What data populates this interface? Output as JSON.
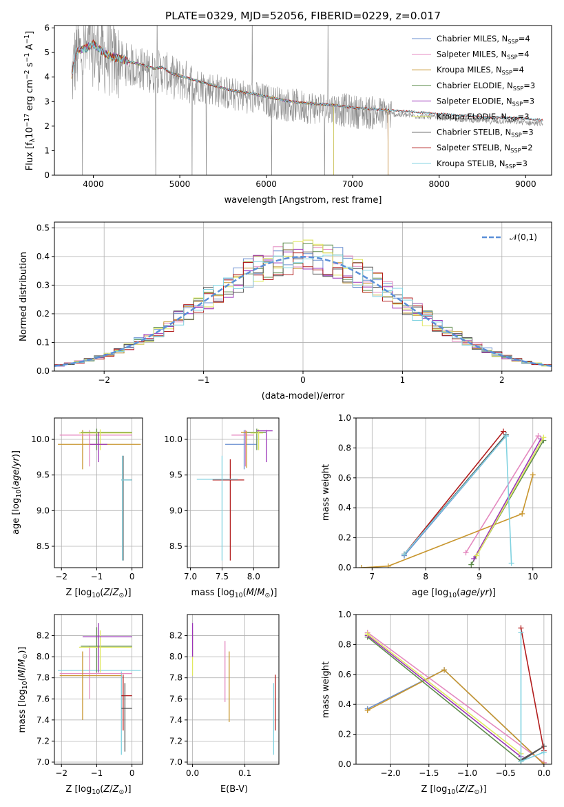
{
  "figure": {
    "title": "PLATE=0329, MJD=52056, FIBERID=0229, z=0.017"
  },
  "colors": {
    "Chabrier MILES": "#6a8fd0",
    "Salpeter MILES": "#e48ac0",
    "Kroupa MILES": "#c8962e",
    "Chabrier ELODIE": "#5e8c4c",
    "Salpeter ELODIE": "#9a34b8",
    "Kroupa ELODIE": "#e0e860",
    "Chabrier STELIB": "#555555",
    "Salpeter STELIB": "#b21e1e",
    "Kroupa STELIB": "#80d2e0",
    "data": "#8a8a8a",
    "gaussian": "#5a8fd8"
  },
  "chart_data": [
    {
      "id": "spectrum",
      "type": "line",
      "xlabel": "wavelength [Angstrom, rest frame]",
      "ylabel": "Flux [f",
      "ylabel_sub": "λ",
      "ylabel_rest": "10",
      "ylabel_sup1": "−17",
      "ylabel_tail": " erg cm",
      "ylabel_sup2": "−2",
      "ylabel_tail2": " s",
      "ylabel_sup3": "−1",
      "ylabel_tail3": " A",
      "ylabel_sup4": "−1",
      "ylabel_end": "]",
      "xlim": [
        3550,
        9300
      ],
      "ylim": [
        0,
        6.1
      ],
      "xticks": [
        4000,
        5000,
        6000,
        7000,
        8000,
        9000
      ],
      "yticks": [
        0,
        1,
        2,
        3,
        4,
        5,
        6
      ],
      "continuum": {
        "x": [
          3750,
          3800,
          3900,
          4000,
          4100,
          4200,
          4300,
          4400,
          4500,
          4600,
          4700,
          4800,
          4900,
          5000,
          5200,
          5400,
          5600,
          5800,
          6000,
          6200,
          6400,
          6600,
          6800,
          7000,
          7200,
          7400,
          7600,
          7800,
          8000,
          8200,
          8400,
          8600,
          8800,
          9000,
          9200
        ],
        "y": [
          3.9,
          4.9,
          5.0,
          5.2,
          4.9,
          4.7,
          4.6,
          4.5,
          4.4,
          4.3,
          4.2,
          4.25,
          4.0,
          3.9,
          3.7,
          3.5,
          3.3,
          3.2,
          3.05,
          2.9,
          2.8,
          2.75,
          2.7,
          2.6,
          2.55,
          2.5,
          2.45,
          2.4,
          2.35,
          2.3,
          2.25,
          2.2,
          2.2,
          2.15,
          2.1
        ]
      },
      "data_range": [
        3750,
        9200
      ],
      "model_ranges": {
        "Chabrier MILES": [
          3750,
          7410
        ],
        "Salpeter MILES": [
          3750,
          7410
        ],
        "Kroupa MILES": [
          3750,
          7410
        ],
        "Chabrier ELODIE": [
          3850,
          6780
        ],
        "Salpeter ELODIE": [
          3850,
          6780
        ],
        "Kroupa ELODIE": [
          3850,
          6780
        ],
        "Chabrier STELIB": [
          3750,
          9200
        ],
        "Salpeter STELIB": [
          3750,
          9200
        ],
        "Kroupa STELIB": [
          3750,
          9200
        ]
      },
      "legend": [
        {
          "name": "Chabrier MILES, N",
          "sub": "SSP",
          "tail": "=4"
        },
        {
          "name": "Salpeter MILES, N",
          "sub": "SSP",
          "tail": "=4"
        },
        {
          "name": "Kroupa MILES, N",
          "sub": "SSP",
          "tail": "=4"
        },
        {
          "name": "Chabrier ELODIE, N",
          "sub": "SSP",
          "tail": "=3"
        },
        {
          "name": "Salpeter ELODIE, N",
          "sub": "SSP",
          "tail": "=3"
        },
        {
          "name": "Kroupa ELODIE, N",
          "sub": "SSP",
          "tail": "=3"
        },
        {
          "name": "Chabrier STELIB, N",
          "sub": "SSP",
          "tail": "=3"
        },
        {
          "name": "Salpeter STELIB, N",
          "sub": "SSP",
          "tail": "=2"
        },
        {
          "name": "Kroupa STELIB, N",
          "sub": "SSP",
          "tail": "=3"
        }
      ],
      "legend_position": "upper-right"
    },
    {
      "id": "residuals",
      "type": "histogram",
      "xlabel": "(data-model)/error",
      "ylabel": "Normed distribution",
      "xlim": [
        -2.5,
        2.5
      ],
      "ylim": [
        0,
        0.52
      ],
      "xticks": [
        -2,
        -1,
        0,
        1,
        2
      ],
      "yticks": [
        0.0,
        0.1,
        0.2,
        0.3,
        0.4,
        0.5
      ],
      "bin_width": 0.1,
      "legend": "𝒩(0,1)",
      "grid": true
    },
    {
      "id": "age_vs_Z",
      "type": "errorbar",
      "xlabel": "Z [log",
      "ylabel": "age  [log",
      "xlim": [
        -2.2,
        0.3
      ],
      "ylim": [
        8.2,
        10.3
      ],
      "xticks": [
        -2,
        -1,
        0
      ],
      "yticks": [
        8.5,
        9.0,
        9.5,
        10.0
      ]
    },
    {
      "id": "age_vs_mass",
      "type": "errorbar",
      "xlabel": "mass [log",
      "xlim": [
        6.95,
        8.4
      ],
      "ylim": [
        8.2,
        10.3
      ],
      "xticks": [
        7.0,
        7.5,
        8.0
      ],
      "yticks": [
        8.5,
        9.0,
        9.5,
        10.0
      ]
    },
    {
      "id": "weight_vs_age",
      "type": "line",
      "xlabel": "age  [log",
      "ylabel": "mass weight",
      "xlim": [
        6.7,
        10.35
      ],
      "ylim": [
        0,
        1.0
      ],
      "xticks": [
        7,
        8,
        9,
        10
      ],
      "yticks": [
        0.0,
        0.2,
        0.4,
        0.6,
        0.8,
        1.0
      ],
      "series": [
        {
          "key": "Chabrier MILES",
          "x": [
            7.6,
            9.5
          ],
          "y": [
            0.08,
            0.88
          ]
        },
        {
          "key": "Salpeter MILES",
          "x": [
            8.75,
            10.1
          ],
          "y": [
            0.1,
            0.88
          ]
        },
        {
          "key": "Kroupa MILES",
          "x": [
            6.8,
            7.3,
            9.8,
            10.0
          ],
          "y": [
            0.0,
            0.01,
            0.36,
            0.62
          ]
        },
        {
          "key": "Chabrier ELODIE",
          "x": [
            8.85,
            10.2
          ],
          "y": [
            0.02,
            0.85
          ]
        },
        {
          "key": "Salpeter ELODIE",
          "x": [
            8.9,
            10.15
          ],
          "y": [
            0.06,
            0.86
          ]
        },
        {
          "key": "Kroupa ELODIE",
          "x": [
            8.95,
            10.2
          ],
          "y": [
            0.08,
            0.87
          ]
        },
        {
          "key": "Chabrier STELIB",
          "x": [
            7.6,
            9.5
          ],
          "y": [
            0.09,
            0.89
          ]
        },
        {
          "key": "Salpeter STELIB",
          "x": [
            7.6,
            9.45
          ],
          "y": [
            0.09,
            0.91
          ]
        },
        {
          "key": "Kroupa STELIB",
          "x": [
            7.6,
            9.5,
            9.6
          ],
          "y": [
            0.09,
            0.88,
            0.03
          ]
        }
      ]
    },
    {
      "id": "mass_vs_Z",
      "type": "errorbar",
      "xlabel": "Z [log",
      "ylabel": "mass [log",
      "xlim": [
        -2.2,
        0.3
      ],
      "ylim": [
        6.98,
        8.4
      ],
      "xticks": [
        -2,
        -1,
        0
      ],
      "yticks": [
        7.0,
        7.2,
        7.4,
        7.6,
        7.8,
        8.0,
        8.2
      ]
    },
    {
      "id": "mass_vs_EBV",
      "type": "errorbar",
      "xlabel": "E(B-V)",
      "xlim": [
        -0.01,
        0.165
      ],
      "ylim": [
        6.98,
        8.4
      ],
      "xticks": [
        0.0,
        0.1
      ],
      "yticks": [
        7.0,
        7.2,
        7.4,
        7.6,
        7.8,
        8.0,
        8.2
      ]
    },
    {
      "id": "weight_vs_Z",
      "type": "line",
      "xlabel": "Z [log",
      "ylabel": "mass weight",
      "xlim": [
        -2.45,
        0.1
      ],
      "ylim": [
        0,
        1.0
      ],
      "xticks": [
        -2.0,
        -1.5,
        -1.0,
        -0.5,
        0.0
      ],
      "yticks": [
        0.0,
        0.2,
        0.4,
        0.6,
        0.8,
        1.0
      ],
      "series": [
        {
          "key": "Chabrier MILES",
          "x": [
            -2.3,
            -1.3,
            0.0
          ],
          "y": [
            0.37,
            0.63,
            0.0
          ]
        },
        {
          "key": "Salpeter MILES",
          "x": [
            -2.3,
            0.0
          ],
          "y": [
            0.88,
            0.01
          ]
        },
        {
          "key": "Kroupa MILES",
          "x": [
            -2.3,
            -1.3,
            0.0
          ],
          "y": [
            0.36,
            0.63,
            0.0
          ]
        },
        {
          "key": "Chabrier ELODIE",
          "x": [
            -2.3,
            -0.3
          ],
          "y": [
            0.85,
            0.02
          ]
        },
        {
          "key": "Salpeter ELODIE",
          "x": [
            -2.3,
            -0.3
          ],
          "y": [
            0.86,
            0.05
          ]
        },
        {
          "key": "Kroupa ELODIE",
          "x": [
            -2.3,
            -0.3
          ],
          "y": [
            0.87,
            0.07
          ]
        },
        {
          "key": "Chabrier STELIB",
          "x": [
            -0.3,
            0.0,
            -0.3
          ],
          "y": [
            0.03,
            0.12,
            0.02
          ]
        },
        {
          "key": "Salpeter STELIB",
          "x": [
            -0.3,
            0.0
          ],
          "y": [
            0.91,
            0.09
          ]
        },
        {
          "key": "Kroupa STELIB",
          "x": [
            -0.3,
            -0.3,
            0.0
          ],
          "y": [
            0.88,
            0.02,
            0.08
          ]
        }
      ]
    }
  ],
  "errorbars": {
    "age_vs_Z": [
      {
        "key": "Kroupa MILES",
        "x": -1.4,
        "y": 9.93,
        "xl": -2.1,
        "xh": 0.25,
        "yl": 9.58,
        "yh": 10.13
      },
      {
        "key": "Salpeter MILES",
        "x": -1.2,
        "y": 10.06,
        "xl": -2.05,
        "xh": 0.0,
        "yl": 9.62,
        "yh": 10.13
      },
      {
        "key": "Chabrier ELODIE",
        "x": -1.0,
        "y": 10.1,
        "xl": -1.45,
        "xh": 0.0,
        "yl": 9.85,
        "yh": 10.15
      },
      {
        "key": "Kroupa ELODIE",
        "x": -0.9,
        "y": 10.09,
        "xl": -1.5,
        "xh": 0.0,
        "yl": 9.85,
        "yh": 10.14
      },
      {
        "key": "Salpeter ELODIE",
        "x": -0.95,
        "y": 9.93,
        "xl": -1.2,
        "xh": -0.7,
        "yl": 9.68,
        "yh": 10.1
      },
      {
        "key": "Chabrier STELIB",
        "x": -0.25,
        "y": 9.43,
        "xl": -0.3,
        "xh": 0.0,
        "yl": 8.3,
        "yh": 9.77
      },
      {
        "key": "Kroupa STELIB",
        "x": -0.27,
        "y": 9.43,
        "xl": -0.3,
        "xh": 0.0,
        "yl": 8.3,
        "yh": 9.77
      }
    ],
    "age_vs_mass": [
      {
        "key": "Chabrier MILES",
        "x": 7.85,
        "y": 9.93,
        "xl": 7.55,
        "xh": 8.05,
        "yl": 9.58,
        "yh": 10.13
      },
      {
        "key": "Salpeter MILES",
        "x": 7.87,
        "y": 10.06,
        "xl": 7.65,
        "xh": 8.0,
        "yl": 9.62,
        "yh": 10.13
      },
      {
        "key": "Kroupa MILES",
        "x": 7.89,
        "y": 10.1,
        "xl": 7.8,
        "xh": 8.0,
        "yl": 9.6,
        "yh": 10.12
      },
      {
        "key": "Chabrier ELODIE",
        "x": 8.05,
        "y": 10.1,
        "xl": 7.9,
        "xh": 8.2,
        "yl": 9.85,
        "yh": 10.15
      },
      {
        "key": "Kroupa ELODIE",
        "x": 8.08,
        "y": 10.09,
        "xl": 7.95,
        "xh": 8.15,
        "yl": 9.85,
        "yh": 10.14
      },
      {
        "key": "Salpeter ELODIE",
        "x": 8.2,
        "y": 10.12,
        "xl": 8.05,
        "xh": 8.3,
        "yl": 9.68,
        "yh": 10.13
      },
      {
        "key": "Salpeter STELIB",
        "x": 7.63,
        "y": 9.43,
        "xl": 7.35,
        "xh": 7.85,
        "yl": 8.3,
        "yh": 9.72
      },
      {
        "key": "Kroupa STELIB",
        "x": 7.5,
        "y": 9.44,
        "xl": 7.1,
        "xh": 7.75,
        "yl": 8.3,
        "yh": 9.77
      }
    ],
    "mass_vs_Z": [
      {
        "key": "Kroupa STELIB",
        "x": -0.3,
        "y": 7.87,
        "xl": -2.1,
        "xh": 0.25,
        "yl": 7.07,
        "yh": 7.86
      },
      {
        "key": "Salpeter MILES",
        "x": -1.2,
        "y": 7.84,
        "xl": -2.05,
        "xh": 0.0,
        "yl": 7.6,
        "yh": 8.1
      },
      {
        "key": "Kroupa MILES",
        "x": -1.4,
        "y": 7.82,
        "xl": -2.05,
        "xh": -0.3,
        "yl": 7.4,
        "yh": 8.05
      },
      {
        "key": "Chabrier ELODIE",
        "x": -1.0,
        "y": 8.1,
        "xl": -1.45,
        "xh": 0.0,
        "yl": 7.85,
        "yh": 8.28
      },
      {
        "key": "Kroupa ELODIE",
        "x": -0.9,
        "y": 8.09,
        "xl": -1.5,
        "xh": 0.0,
        "yl": 7.85,
        "yh": 8.25
      },
      {
        "key": "Salpeter ELODIE",
        "x": -0.95,
        "y": 8.19,
        "xl": -1.4,
        "xh": 0.0,
        "yl": 7.85,
        "yh": 8.32
      },
      {
        "key": "Salpeter STELIB",
        "x": -0.25,
        "y": 7.63,
        "xl": -0.3,
        "xh": 0.0,
        "yl": 7.3,
        "yh": 7.83
      },
      {
        "key": "Chabrier STELIB",
        "x": -0.2,
        "y": 7.51,
        "xl": -0.3,
        "xh": 0.0,
        "yl": 7.1,
        "yh": 7.75
      }
    ],
    "mass_vs_EBV": [
      {
        "key": "Kroupa ELODIE",
        "x": 0.0,
        "y": 8.1,
        "xl": 0.0,
        "xh": 0.0,
        "yl": 7.82,
        "yh": 8.25
      },
      {
        "key": "Salpeter ELODIE",
        "x": 0.0,
        "y": 8.19,
        "xl": 0.0,
        "xh": 0.0,
        "yl": 8.0,
        "yh": 8.32
      },
      {
        "key": "Salpeter MILES",
        "x": 0.062,
        "y": 7.84,
        "xl": 0.062,
        "xh": 0.062,
        "yl": 7.57,
        "yh": 8.15
      },
      {
        "key": "Kroupa MILES",
        "x": 0.07,
        "y": 7.82,
        "xl": 0.07,
        "xh": 0.07,
        "yl": 7.38,
        "yh": 8.05
      },
      {
        "key": "Kroupa STELIB",
        "x": 0.155,
        "y": 7.7,
        "xl": 0.155,
        "xh": 0.155,
        "yl": 7.07,
        "yh": 7.75
      },
      {
        "key": "Salpeter STELIB",
        "x": 0.158,
        "y": 7.63,
        "xl": 0.158,
        "xh": 0.158,
        "yl": 7.3,
        "yh": 7.83
      }
    ]
  }
}
